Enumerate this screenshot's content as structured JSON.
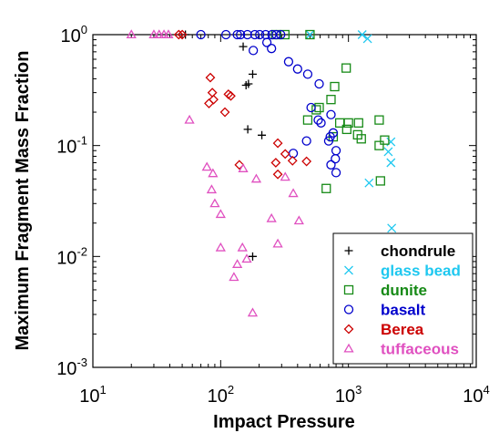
{
  "chart_data": {
    "type": "scatter",
    "title": "",
    "xlabel": "Impact Pressure",
    "ylabel": "Maximum Fragment Mass Fraction",
    "xscale": "log",
    "yscale": "log",
    "xlim": [
      10,
      10000
    ],
    "ylim": [
      0.001,
      1
    ],
    "x_ticks": [
      {
        "value": 10,
        "base": "10",
        "exp": "1"
      },
      {
        "value": 100,
        "base": "10",
        "exp": "2"
      },
      {
        "value": 1000,
        "base": "10",
        "exp": "3"
      },
      {
        "value": 10000,
        "base": "10",
        "exp": "4"
      }
    ],
    "y_ticks": [
      {
        "value": 0.001,
        "base": "10",
        "exp": "-3"
      },
      {
        "value": 0.01,
        "base": "10",
        "exp": "-2"
      },
      {
        "value": 0.1,
        "base": "10",
        "exp": "-1"
      },
      {
        "value": 1,
        "base": "10",
        "exp": "0"
      }
    ],
    "grid": false,
    "legend_position": "bottom-right",
    "series": [
      {
        "name": "chondrule",
        "marker": "plus",
        "color": "#000000",
        "points": [
          [
            53,
            1.0
          ],
          [
            150,
            0.78
          ],
          [
            178,
            0.44
          ],
          [
            158,
            0.35
          ],
          [
            165,
            0.36
          ],
          [
            163,
            0.14
          ],
          [
            210,
            0.124
          ],
          [
            178,
            0.01
          ]
        ]
      },
      {
        "name": "glass bead",
        "marker": "x",
        "color": "#1ec8f0",
        "points": [
          [
            500,
            1.0
          ],
          [
            1280,
            1.0
          ],
          [
            1410,
            0.92
          ],
          [
            2150,
            0.108
          ],
          [
            2050,
            0.088
          ],
          [
            2150,
            0.07
          ],
          [
            1450,
            0.046
          ],
          [
            2180,
            0.018
          ]
        ]
      },
      {
        "name": "dunite",
        "marker": "square",
        "color": "#168a16",
        "points": [
          [
            270,
            1.0
          ],
          [
            318,
            1.0
          ],
          [
            500,
            1.0
          ],
          [
            960,
            0.5
          ],
          [
            780,
            0.34
          ],
          [
            590,
            0.22
          ],
          [
            730,
            0.26
          ],
          [
            560,
            0.21
          ],
          [
            855,
            0.16
          ],
          [
            1000,
            0.16
          ],
          [
            1200,
            0.16
          ],
          [
            1740,
            0.17
          ],
          [
            480,
            0.17
          ],
          [
            970,
            0.14
          ],
          [
            1180,
            0.125
          ],
          [
            1260,
            0.115
          ],
          [
            1920,
            0.112
          ],
          [
            760,
            0.12
          ],
          [
            1740,
            0.1
          ],
          [
            670,
            0.041
          ],
          [
            1780,
            0.048
          ]
        ]
      },
      {
        "name": "basalt",
        "marker": "circle",
        "color": "#0000cc",
        "points": [
          [
            70,
            1.0
          ],
          [
            110,
            1.0
          ],
          [
            135,
            1.0
          ],
          [
            143,
            1.0
          ],
          [
            162,
            1.0
          ],
          [
            185,
            1.0
          ],
          [
            202,
            1.0
          ],
          [
            225,
            1.0
          ],
          [
            252,
            1.0
          ],
          [
            272,
            1.0
          ],
          [
            295,
            1.0
          ],
          [
            230,
            0.85
          ],
          [
            250,
            0.75
          ],
          [
            180,
            0.72
          ],
          [
            340,
            0.57
          ],
          [
            400,
            0.49
          ],
          [
            480,
            0.44
          ],
          [
            590,
            0.36
          ],
          [
            510,
            0.22
          ],
          [
            580,
            0.17
          ],
          [
            610,
            0.16
          ],
          [
            730,
            0.19
          ],
          [
            760,
            0.13
          ],
          [
            720,
            0.12
          ],
          [
            470,
            0.11
          ],
          [
            700,
            0.11
          ],
          [
            800,
            0.09
          ],
          [
            370,
            0.085
          ],
          [
            790,
            0.076
          ],
          [
            730,
            0.067
          ],
          [
            800,
            0.057
          ]
        ]
      },
      {
        "name": "Berea",
        "marker": "diamond",
        "color": "#cc0000",
        "points": [
          [
            47,
            1.0
          ],
          [
            50,
            1.0
          ],
          [
            83,
            0.41
          ],
          [
            86,
            0.3
          ],
          [
            88,
            0.26
          ],
          [
            81,
            0.24
          ],
          [
            115,
            0.29
          ],
          [
            120,
            0.28
          ],
          [
            108,
            0.2
          ],
          [
            280,
            0.105
          ],
          [
            320,
            0.084
          ],
          [
            365,
            0.073
          ],
          [
            470,
            0.072
          ],
          [
            270,
            0.07
          ],
          [
            140,
            0.067
          ],
          [
            280,
            0.055
          ]
        ]
      },
      {
        "name": "tuffaceous",
        "marker": "triangle",
        "color": "#e050c0",
        "points": [
          [
            20,
            1.0
          ],
          [
            30,
            1.0
          ],
          [
            33,
            1.0
          ],
          [
            36,
            1.0
          ],
          [
            39,
            1.0
          ],
          [
            57,
            0.17
          ],
          [
            78,
            0.064
          ],
          [
            87,
            0.056
          ],
          [
            150,
            0.062
          ],
          [
            85,
            0.04
          ],
          [
            90,
            0.03
          ],
          [
            100,
            0.024
          ],
          [
            190,
            0.05
          ],
          [
            320,
            0.052
          ],
          [
            370,
            0.037
          ],
          [
            410,
            0.021
          ],
          [
            250,
            0.022
          ],
          [
            100,
            0.012
          ],
          [
            148,
            0.012
          ],
          [
            135,
            0.0085
          ],
          [
            160,
            0.0095
          ],
          [
            127,
            0.0065
          ],
          [
            280,
            0.013
          ],
          [
            178,
            0.0031
          ]
        ]
      }
    ]
  }
}
